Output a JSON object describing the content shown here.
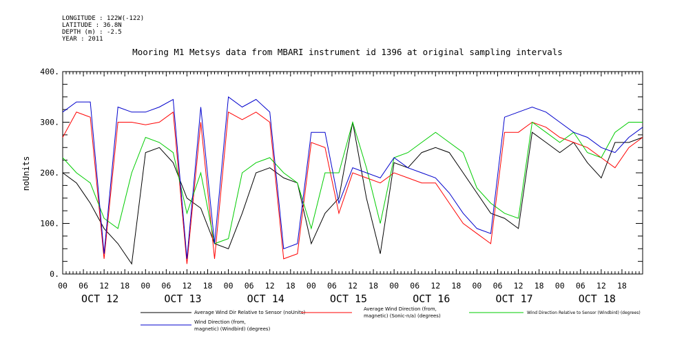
{
  "meta": {
    "longitude": "LONGITUDE : 122W(-122)",
    "latitude": "LATITUDE : 36.8N",
    "depth": "DEPTH (m) : -2.5",
    "year": "YEAR : 2011"
  },
  "chart_data": {
    "type": "line",
    "title": "Mooring M1 Metsys data from MBARI instrument id 1396 at original sampling intervals",
    "xlabel": "",
    "ylabel": "noUnits",
    "ylim": [
      0,
      400
    ],
    "yticks": [
      "0.",
      "100.",
      "200.",
      "300.",
      "400."
    ],
    "hour_ticks": [
      "00",
      "06",
      "12",
      "18",
      "00",
      "06",
      "12",
      "18",
      "00",
      "06",
      "12",
      "18",
      "00",
      "06",
      "12",
      "18",
      "00",
      "06",
      "12",
      "18",
      "00",
      "06",
      "12",
      "18",
      "00",
      "06",
      "12",
      "18"
    ],
    "day_labels": [
      "OCT 12",
      "OCT 13",
      "OCT 14",
      "OCT 15",
      "OCT 16",
      "OCT 17",
      "OCT 18"
    ],
    "grid": false,
    "legend_position": "bottom",
    "x_hours": [
      0,
      4,
      8,
      12,
      16,
      20,
      24,
      28,
      32,
      36,
      40,
      44,
      48,
      52,
      56,
      60,
      64,
      68,
      72,
      76,
      80,
      84,
      88,
      92,
      96,
      100,
      104,
      108,
      112,
      116,
      120,
      124,
      128,
      132,
      136,
      140,
      144,
      148,
      152,
      156,
      160,
      164,
      168
    ],
    "series": [
      {
        "name": "Average Wind Dir Relative to Sensor (noUnits)",
        "color": "#000000",
        "values": [
          200,
          180,
          140,
          90,
          60,
          20,
          240,
          250,
          220,
          150,
          130,
          60,
          50,
          120,
          200,
          210,
          190,
          180,
          60,
          120,
          150,
          300,
          150,
          40,
          220,
          210,
          240,
          250,
          240,
          200,
          160,
          120,
          110,
          90,
          280,
          260,
          240,
          260,
          220,
          190,
          260,
          260,
          270
        ]
      },
      {
        "name": "Average Wind Direction (from, magnetic) (Sonic-n/a) (degrees)",
        "color": "#ff0000",
        "values": [
          270,
          320,
          310,
          30,
          300,
          300,
          295,
          300,
          320,
          20,
          300,
          30,
          320,
          305,
          320,
          300,
          30,
          40,
          260,
          250,
          120,
          200,
          190,
          180,
          200,
          190,
          180,
          180,
          140,
          100,
          80,
          60,
          280,
          280,
          300,
          290,
          270,
          260,
          250,
          230,
          210,
          250,
          270
        ]
      },
      {
        "name": "Wind Direction Relative to Sensor (Windbird) (degrees)",
        "color": "#00cc00",
        "values": [
          230,
          200,
          180,
          110,
          90,
          200,
          270,
          260,
          240,
          120,
          200,
          60,
          70,
          200,
          220,
          230,
          200,
          180,
          90,
          200,
          200,
          300,
          210,
          100,
          230,
          240,
          260,
          280,
          260,
          240,
          170,
          140,
          120,
          110,
          300,
          280,
          260,
          280,
          240,
          230,
          280,
          300,
          300
        ]
      },
      {
        "name": "Wind Direction (from, magnetic) (Windbird) (degrees)",
        "color": "#0000cc",
        "values": [
          320,
          340,
          340,
          40,
          330,
          320,
          320,
          330,
          345,
          30,
          330,
          60,
          350,
          330,
          345,
          320,
          50,
          60,
          280,
          280,
          140,
          210,
          200,
          190,
          230,
          210,
          200,
          190,
          160,
          120,
          90,
          80,
          310,
          320,
          330,
          320,
          300,
          280,
          270,
          250,
          240,
          270,
          290
        ]
      }
    ]
  },
  "legend": {
    "black": "Average Wind Dir Relative to Sensor (noUnits)",
    "red_1": "Average Wind Direction (from,",
    "red_2": "magnetic) (Sonic-n/a) (degrees)",
    "green": "Wind Direction Relative to Sensor (Windbird) (degrees)",
    "blue_1": "Wind Direction (from,",
    "blue_2": "magnetic) (Windbird) (degrees)"
  }
}
